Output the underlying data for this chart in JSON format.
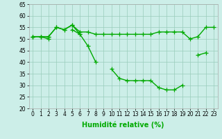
{
  "xlabel": "Humidité relative (%)",
  "bg_color": "#cceee8",
  "grid_color": "#99ccbb",
  "line_color": "#00aa00",
  "xlim": [
    -0.5,
    23.5
  ],
  "ylim": [
    20,
    65
  ],
  "yticks": [
    20,
    25,
    30,
    35,
    40,
    45,
    50,
    55,
    60,
    65
  ],
  "xticks": [
    0,
    1,
    2,
    3,
    4,
    5,
    6,
    7,
    8,
    9,
    10,
    11,
    12,
    13,
    14,
    15,
    16,
    17,
    18,
    19,
    20,
    21,
    22,
    23
  ],
  "series1_y": [
    51,
    51,
    51,
    55,
    54,
    56,
    53,
    53,
    52,
    52,
    52,
    52,
    52,
    52,
    52,
    52,
    53,
    53,
    53,
    53,
    50,
    51,
    55,
    55
  ],
  "series2_y": [
    51,
    51,
    51,
    55,
    54,
    56,
    52,
    47,
    40,
    null,
    37,
    33,
    32,
    32,
    32,
    32,
    29,
    28,
    28,
    30,
    null,
    43,
    44,
    null
  ],
  "series3_y": [
    51,
    51,
    50,
    null,
    null,
    54,
    52,
    null,
    null,
    null,
    null,
    null,
    null,
    null,
    null,
    null,
    null,
    null,
    null,
    null,
    null,
    null,
    null,
    null
  ],
  "marker_size": 4,
  "line_width": 1.0,
  "xlabel_fontsize": 7,
  "tick_fontsize": 5.5
}
